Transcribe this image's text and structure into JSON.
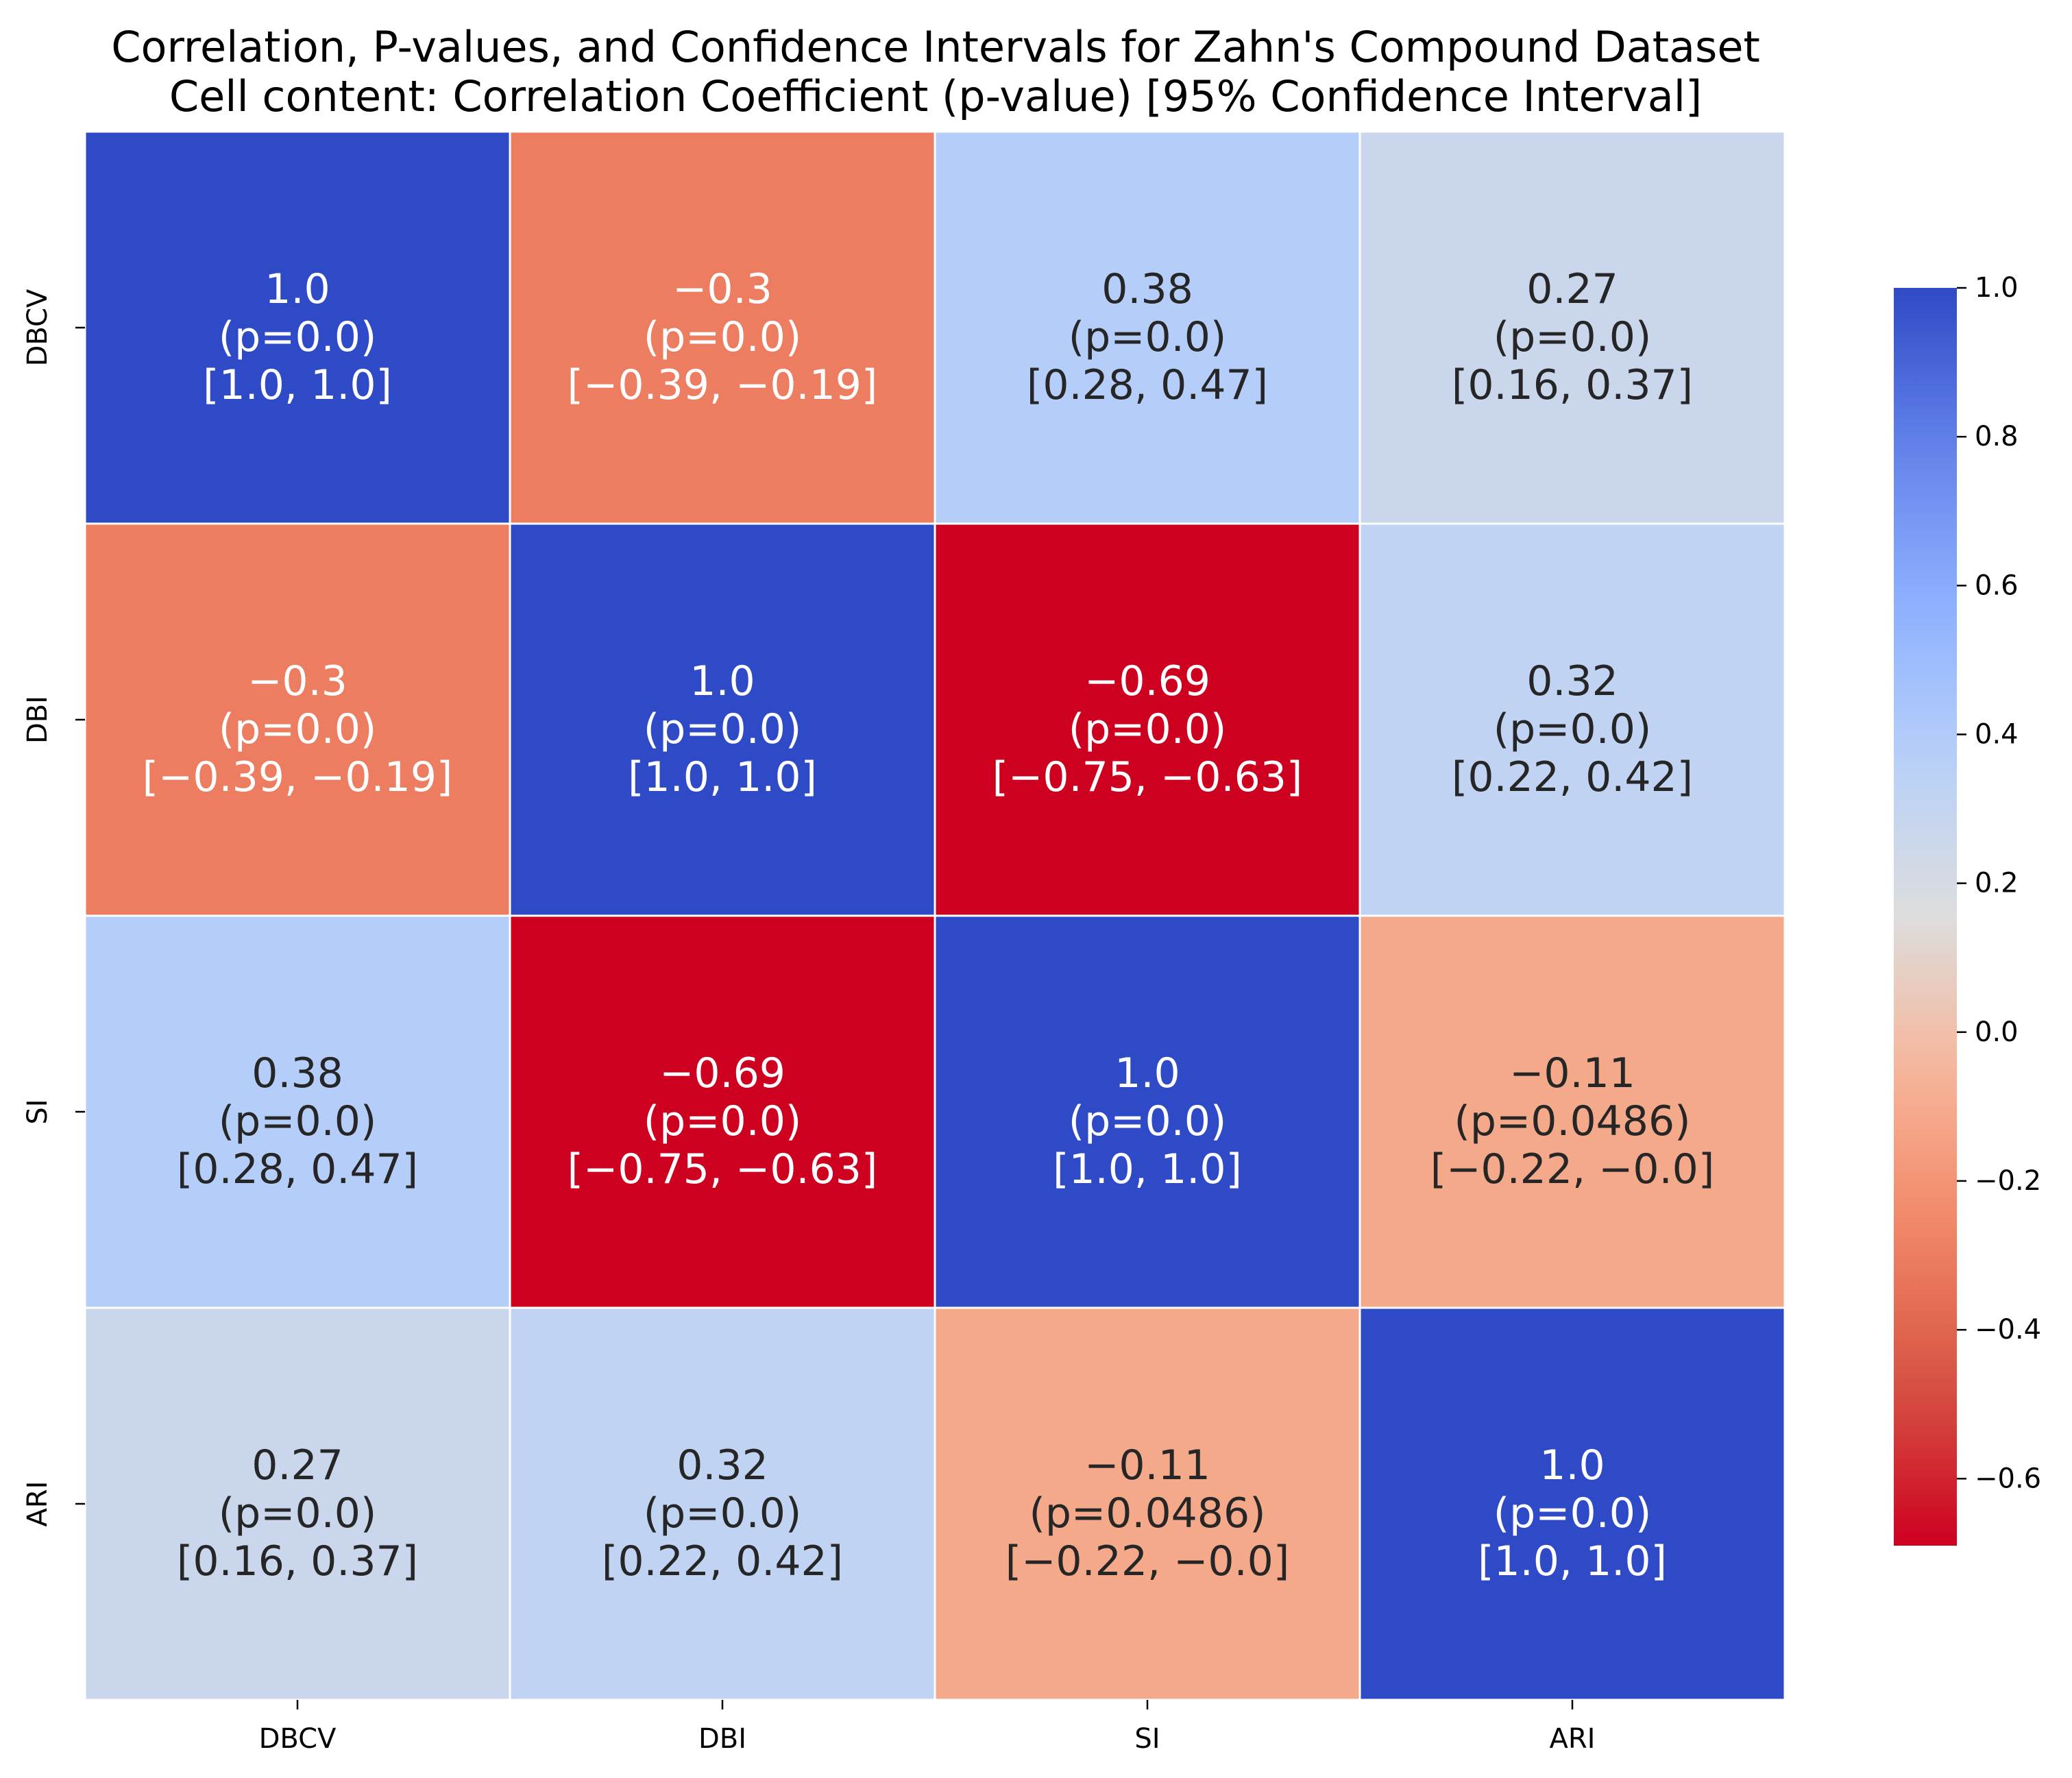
{
  "chart_data": {
    "type": "heatmap",
    "title": "Correlation, P-values, and Confidence Intervals for Zahn's Compound Dataset",
    "subtitle": "Cell content: Correlation Coefficient (p-value) [95% Confidence Interval]",
    "x_labels": [
      "DBCV",
      "DBI",
      "SI",
      "ARI"
    ],
    "y_labels": [
      "DBCV",
      "DBI",
      "SI",
      "ARI"
    ],
    "values": [
      [
        1.0,
        -0.3,
        0.38,
        0.27
      ],
      [
        -0.3,
        1.0,
        -0.69,
        0.32
      ],
      [
        0.38,
        -0.69,
        1.0,
        -0.11
      ],
      [
        0.27,
        0.32,
        -0.11,
        1.0
      ]
    ],
    "cells": [
      [
        {
          "r": "1.0",
          "p": "(p=0.0)",
          "ci": "[1.0, 1.0]"
        },
        {
          "r": "−0.3",
          "p": "(p=0.0)",
          "ci": "[−0.39, −0.19]"
        },
        {
          "r": "0.38",
          "p": "(p=0.0)",
          "ci": "[0.28, 0.47]"
        },
        {
          "r": "0.27",
          "p": "(p=0.0)",
          "ci": "[0.16, 0.37]"
        }
      ],
      [
        {
          "r": "−0.3",
          "p": "(p=0.0)",
          "ci": "[−0.39, −0.19]"
        },
        {
          "r": "1.0",
          "p": "(p=0.0)",
          "ci": "[1.0, 1.0]"
        },
        {
          "r": "−0.69",
          "p": "(p=0.0)",
          "ci": "[−0.75, −0.63]"
        },
        {
          "r": "0.32",
          "p": "(p=0.0)",
          "ci": "[0.22, 0.42]"
        }
      ],
      [
        {
          "r": "0.38",
          "p": "(p=0.0)",
          "ci": "[0.28, 0.47]"
        },
        {
          "r": "−0.69",
          "p": "(p=0.0)",
          "ci": "[−0.75, −0.63]"
        },
        {
          "r": "1.0",
          "p": "(p=0.0)",
          "ci": "[1.0, 1.0]"
        },
        {
          "r": "−0.11",
          "p": "(p=0.0486)",
          "ci": "[−0.22, −0.0]"
        }
      ],
      [
        {
          "r": "0.27",
          "p": "(p=0.0)",
          "ci": "[0.16, 0.37]"
        },
        {
          "r": "0.32",
          "p": "(p=0.0)",
          "ci": "[0.22, 0.42]"
        },
        {
          "r": "−0.11",
          "p": "(p=0.0486)",
          "ci": "[−0.22, −0.0]"
        },
        {
          "r": "1.0",
          "p": "(p=0.0)",
          "ci": "[1.0, 1.0]"
        }
      ]
    ],
    "colormap": "coolwarm_r",
    "vmin": -0.69,
    "vmax": 1.0,
    "colorbar": {
      "ticks": [
        1.0,
        0.8,
        0.6,
        0.4,
        0.2,
        0.0,
        -0.2,
        -0.4,
        -0.6
      ],
      "tick_labels": [
        "1.0",
        "0.8",
        "0.6",
        "0.4",
        "0.2",
        "0.0",
        "−0.2",
        "−0.4",
        "−0.6"
      ]
    },
    "grid": false,
    "legend": "right"
  }
}
